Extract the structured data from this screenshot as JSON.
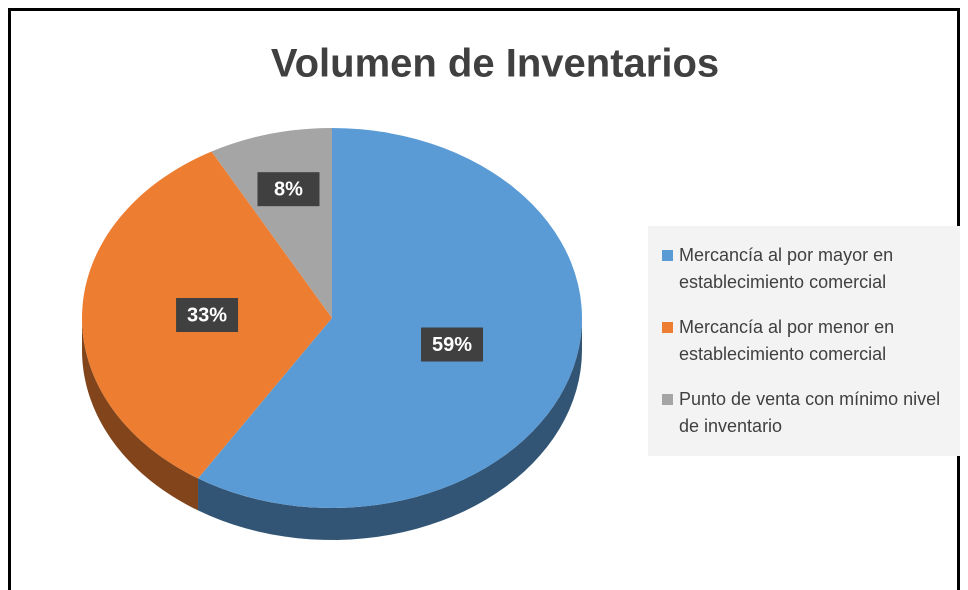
{
  "chart_data": {
    "type": "pie",
    "title": "Volumen de Inventarios",
    "categories": [
      "Mercancía al por mayor en establecimiento comercial",
      "Mercancía al por menor en establecimiento comercial",
      "Punto de venta con mínimo nivel de inventario"
    ],
    "values": [
      59,
      33,
      8
    ],
    "value_labels": [
      "59%",
      "33%",
      "8%"
    ],
    "colors": [
      "#5b9bd5",
      "#ed7d31",
      "#a5a5a5"
    ],
    "legend": "right"
  }
}
